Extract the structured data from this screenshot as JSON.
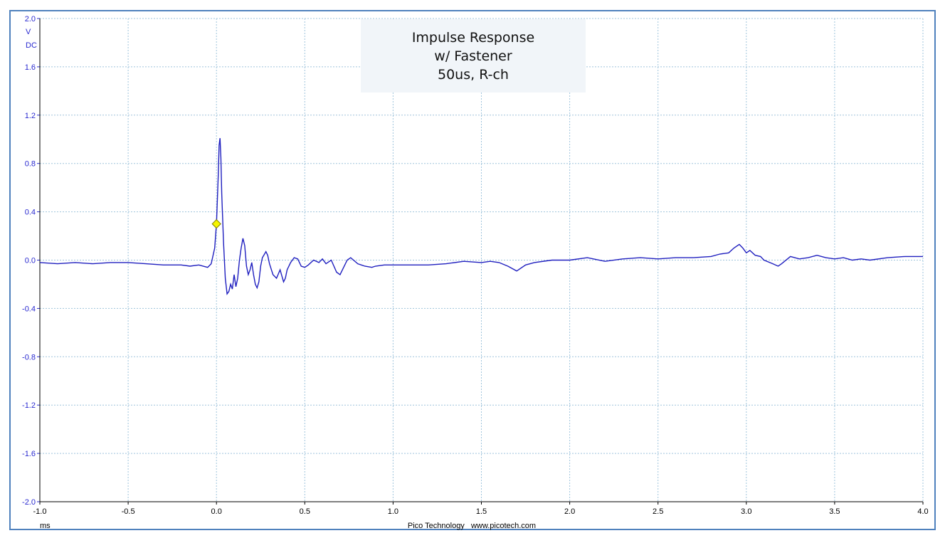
{
  "chart_data": {
    "type": "line",
    "title_lines": [
      "Impulse Response",
      "w/ Fastener",
      "50us, R-ch"
    ],
    "y_unit_lines": [
      "V",
      "DC"
    ],
    "xlabel": "ms",
    "footer": "Pico Technology   www.picotech.com",
    "xlim": [
      -1.0,
      4.0
    ],
    "ylim": [
      -2.0,
      2.0
    ],
    "x_ticks": [
      "-1.0",
      "-0.5",
      "0.0",
      "0.5",
      "1.0",
      "1.5",
      "2.0",
      "2.5",
      "3.0",
      "3.5",
      "4.0"
    ],
    "y_ticks": [
      "2.0",
      "1.6",
      "1.2",
      "0.8",
      "0.4",
      "0.0",
      "-0.4",
      "-0.8",
      "-1.2",
      "-1.6",
      "-2.0"
    ],
    "grid": true,
    "trigger_marker": {
      "x": 0.0,
      "y": 0.3
    },
    "series": [
      {
        "color": "#1f1fbf",
        "x": [
          -1.0,
          -0.9,
          -0.8,
          -0.7,
          -0.6,
          -0.5,
          -0.4,
          -0.3,
          -0.2,
          -0.15,
          -0.1,
          -0.05,
          -0.03,
          -0.01,
          0.0,
          0.01,
          0.015,
          0.02,
          0.025,
          0.03,
          0.04,
          0.05,
          0.06,
          0.07,
          0.08,
          0.09,
          0.1,
          0.11,
          0.12,
          0.13,
          0.14,
          0.15,
          0.16,
          0.17,
          0.18,
          0.19,
          0.2,
          0.21,
          0.22,
          0.23,
          0.24,
          0.25,
          0.26,
          0.28,
          0.29,
          0.3,
          0.32,
          0.34,
          0.36,
          0.38,
          0.39,
          0.4,
          0.42,
          0.44,
          0.46,
          0.48,
          0.5,
          0.52,
          0.55,
          0.58,
          0.6,
          0.62,
          0.65,
          0.68,
          0.7,
          0.72,
          0.74,
          0.76,
          0.8,
          0.84,
          0.88,
          0.9,
          0.95,
          1.0,
          1.1,
          1.2,
          1.3,
          1.4,
          1.5,
          1.55,
          1.6,
          1.65,
          1.7,
          1.75,
          1.8,
          1.9,
          2.0,
          2.1,
          2.2,
          2.3,
          2.4,
          2.5,
          2.6,
          2.7,
          2.8,
          2.85,
          2.9,
          2.93,
          2.96,
          2.98,
          3.0,
          3.02,
          3.05,
          3.08,
          3.1,
          3.15,
          3.18,
          3.2,
          3.25,
          3.3,
          3.35,
          3.4,
          3.45,
          3.5,
          3.55,
          3.6,
          3.65,
          3.7,
          3.8,
          3.9,
          4.0
        ],
        "y": [
          -0.02,
          -0.03,
          -0.02,
          -0.03,
          -0.02,
          -0.02,
          -0.03,
          -0.04,
          -0.04,
          -0.05,
          -0.04,
          -0.06,
          -0.03,
          0.1,
          0.3,
          0.7,
          0.95,
          1.01,
          0.85,
          0.55,
          0.15,
          -0.15,
          -0.28,
          -0.26,
          -0.2,
          -0.24,
          -0.12,
          -0.22,
          -0.15,
          0.0,
          0.1,
          0.18,
          0.12,
          -0.05,
          -0.12,
          -0.08,
          -0.02,
          -0.12,
          -0.2,
          -0.23,
          -0.18,
          -0.05,
          0.02,
          0.07,
          0.04,
          -0.03,
          -0.12,
          -0.15,
          -0.08,
          -0.18,
          -0.15,
          -0.08,
          -0.02,
          0.02,
          0.01,
          -0.05,
          -0.06,
          -0.04,
          0.0,
          -0.02,
          0.01,
          -0.03,
          0.0,
          -0.1,
          -0.12,
          -0.06,
          0.0,
          0.02,
          -0.03,
          -0.05,
          -0.06,
          -0.05,
          -0.04,
          -0.04,
          -0.04,
          -0.04,
          -0.03,
          -0.01,
          -0.02,
          -0.01,
          -0.02,
          -0.05,
          -0.09,
          -0.04,
          -0.02,
          0.0,
          0.0,
          0.02,
          -0.01,
          0.01,
          0.02,
          0.01,
          0.02,
          0.02,
          0.03,
          0.05,
          0.06,
          0.1,
          0.13,
          0.1,
          0.06,
          0.08,
          0.04,
          0.03,
          0.0,
          -0.03,
          -0.05,
          -0.03,
          0.03,
          0.01,
          0.02,
          0.04,
          0.02,
          0.01,
          0.02,
          0.0,
          0.01,
          0.0,
          0.02,
          0.03,
          0.03
        ]
      }
    ]
  }
}
